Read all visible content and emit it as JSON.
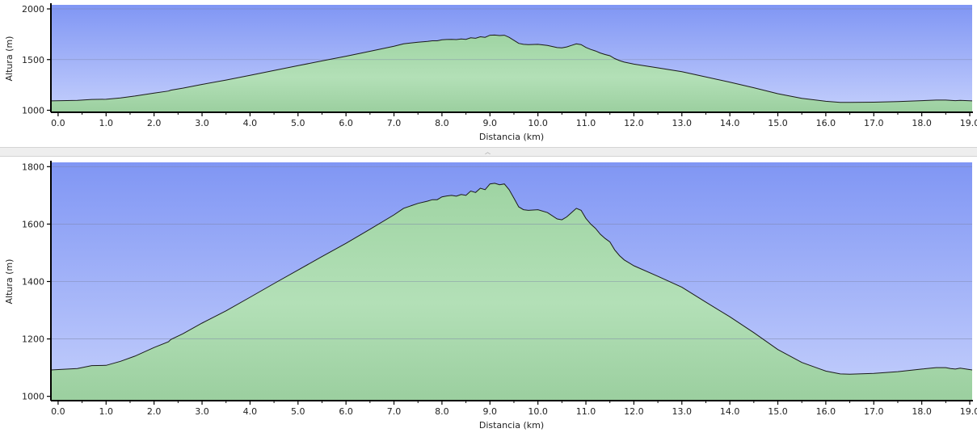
{
  "chart_data": [
    {
      "type": "area",
      "xlabel": "Distancia   (km)",
      "ylabel": "Altura (m)",
      "xlim": [
        -0.15,
        19.05
      ],
      "ylim": [
        980,
        2040
      ],
      "x_ticks": [
        0,
        1,
        2,
        3,
        4,
        5,
        6,
        7,
        8,
        9,
        10,
        11,
        12,
        13,
        14,
        15,
        16,
        17,
        18,
        19
      ],
      "x_tick_labels": [
        "0.0",
        "1.0",
        "2.0",
        "3.0",
        "4.0",
        "5.0",
        "6.0",
        "7.0",
        "8.0",
        "9.0",
        "10.0",
        "11.0",
        "12.0",
        "13.0",
        "14.0",
        "15.0",
        "16.0",
        "17.0",
        "18.0",
        "19.0"
      ],
      "y_ticks": [
        1000,
        1500,
        2000
      ],
      "y_tick_labels": [
        "1000",
        "1500",
        "2000"
      ],
      "grid": "horizontal",
      "series_ref": "elevation"
    },
    {
      "type": "area",
      "xlabel": "Distancia   (km)",
      "ylabel": "Altura (m)",
      "xlim": [
        -0.15,
        19.05
      ],
      "ylim": [
        985,
        1815
      ],
      "x_ticks": [
        0,
        1,
        2,
        3,
        4,
        5,
        6,
        7,
        8,
        9,
        10,
        11,
        12,
        13,
        14,
        15,
        16,
        17,
        18,
        19
      ],
      "x_tick_labels": [
        "0.0",
        "1.0",
        "2.0",
        "3.0",
        "4.0",
        "5.0",
        "6.0",
        "7.0",
        "8.0",
        "9.0",
        "10.0",
        "11.0",
        "12.0",
        "13.0",
        "14.0",
        "15.0",
        "16.0",
        "17.0",
        "18.0",
        "19.0"
      ],
      "y_ticks": [
        1000,
        1200,
        1400,
        1600,
        1800
      ],
      "y_tick_labels": [
        "1000",
        "1200",
        "1400",
        "1600",
        "1800"
      ],
      "grid": "horizontal",
      "series_ref": "elevation"
    }
  ],
  "elevation": {
    "x": [
      -0.15,
      0.4,
      0.7,
      1.0,
      1.3,
      1.6,
      2.0,
      2.3,
      2.35,
      2.6,
      3.0,
      3.5,
      4.0,
      4.5,
      5.0,
      5.5,
      6.0,
      6.5,
      7.0,
      7.2,
      7.5,
      7.7,
      7.8,
      7.9,
      8.0,
      8.1,
      8.2,
      8.3,
      8.4,
      8.5,
      8.6,
      8.7,
      8.8,
      8.9,
      9.0,
      9.1,
      9.2,
      9.3,
      9.4,
      9.5,
      9.6,
      9.7,
      9.8,
      10.0,
      10.2,
      10.4,
      10.5,
      10.6,
      10.7,
      10.8,
      10.9,
      11.0,
      11.1,
      11.2,
      11.3,
      11.4,
      11.5,
      11.6,
      11.7,
      11.8,
      11.9,
      12.0,
      12.5,
      13.0,
      13.5,
      14.0,
      14.5,
      15.0,
      15.5,
      16.0,
      16.3,
      16.5,
      17.0,
      17.5,
      18.0,
      18.3,
      18.5,
      18.6,
      18.7,
      18.8,
      19.05
    ],
    "y": [
      1092,
      1097,
      1107,
      1108,
      1122,
      1140,
      1170,
      1190,
      1198,
      1218,
      1255,
      1298,
      1345,
      1393,
      1440,
      1487,
      1533,
      1582,
      1632,
      1655,
      1672,
      1680,
      1685,
      1685,
      1695,
      1698,
      1700,
      1697,
      1703,
      1700,
      1715,
      1710,
      1725,
      1720,
      1740,
      1742,
      1737,
      1740,
      1720,
      1690,
      1660,
      1650,
      1648,
      1650,
      1640,
      1618,
      1615,
      1625,
      1640,
      1655,
      1648,
      1620,
      1600,
      1585,
      1565,
      1550,
      1538,
      1510,
      1490,
      1475,
      1465,
      1455,
      1418,
      1380,
      1328,
      1277,
      1222,
      1163,
      1118,
      1088,
      1078,
      1077,
      1080,
      1086,
      1095,
      1100,
      1100,
      1097,
      1095,
      1098,
      1092
    ]
  }
}
